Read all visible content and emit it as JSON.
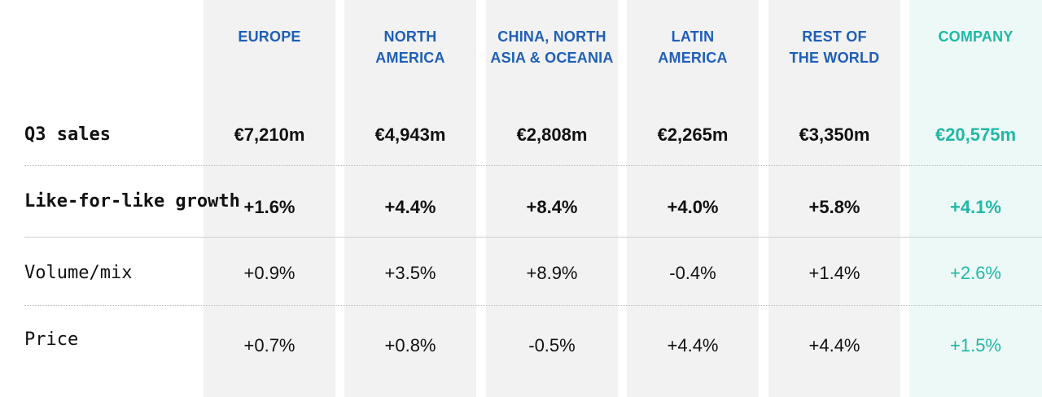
{
  "colors": {
    "accent_blue": "#1f5fb8",
    "company_teal": "#20b8a6",
    "column_bg": "#f2f2f2",
    "company_bg": "#edf9f7"
  },
  "chart_data": {
    "type": "table",
    "columns": [
      {
        "line1": "EUROPE",
        "line2": ""
      },
      {
        "line1": "NORTH",
        "line2": "AMERICA"
      },
      {
        "line1": "CHINA, NORTH",
        "line2": "ASIA & OCEANIA"
      },
      {
        "line1": "LATIN",
        "line2": "AMERICA"
      },
      {
        "line1": "REST OF",
        "line2": "THE WORLD"
      },
      {
        "line1": "COMPANY",
        "line2": ""
      }
    ],
    "rows": [
      {
        "label": "Q3 sales",
        "values": [
          "€7,210m",
          "€4,943m",
          "€2,808m",
          "€2,265m",
          "€3,350m",
          "€20,575m"
        ]
      },
      {
        "label": "Like-for-like growth",
        "values": [
          "+1.6%",
          "+4.4%",
          "+8.4%",
          "+4.0%",
          "+5.8%",
          "+4.1%"
        ]
      },
      {
        "label": "Volume/mix",
        "values": [
          "+0.9%",
          "+3.5%",
          "+8.9%",
          "-0.4%",
          "+1.4%",
          "+2.6%"
        ]
      },
      {
        "label": "Price",
        "values": [
          "+0.7%",
          "+0.8%",
          "-0.5%",
          "+4.4%",
          "+4.4%",
          "+1.5%"
        ]
      }
    ]
  }
}
